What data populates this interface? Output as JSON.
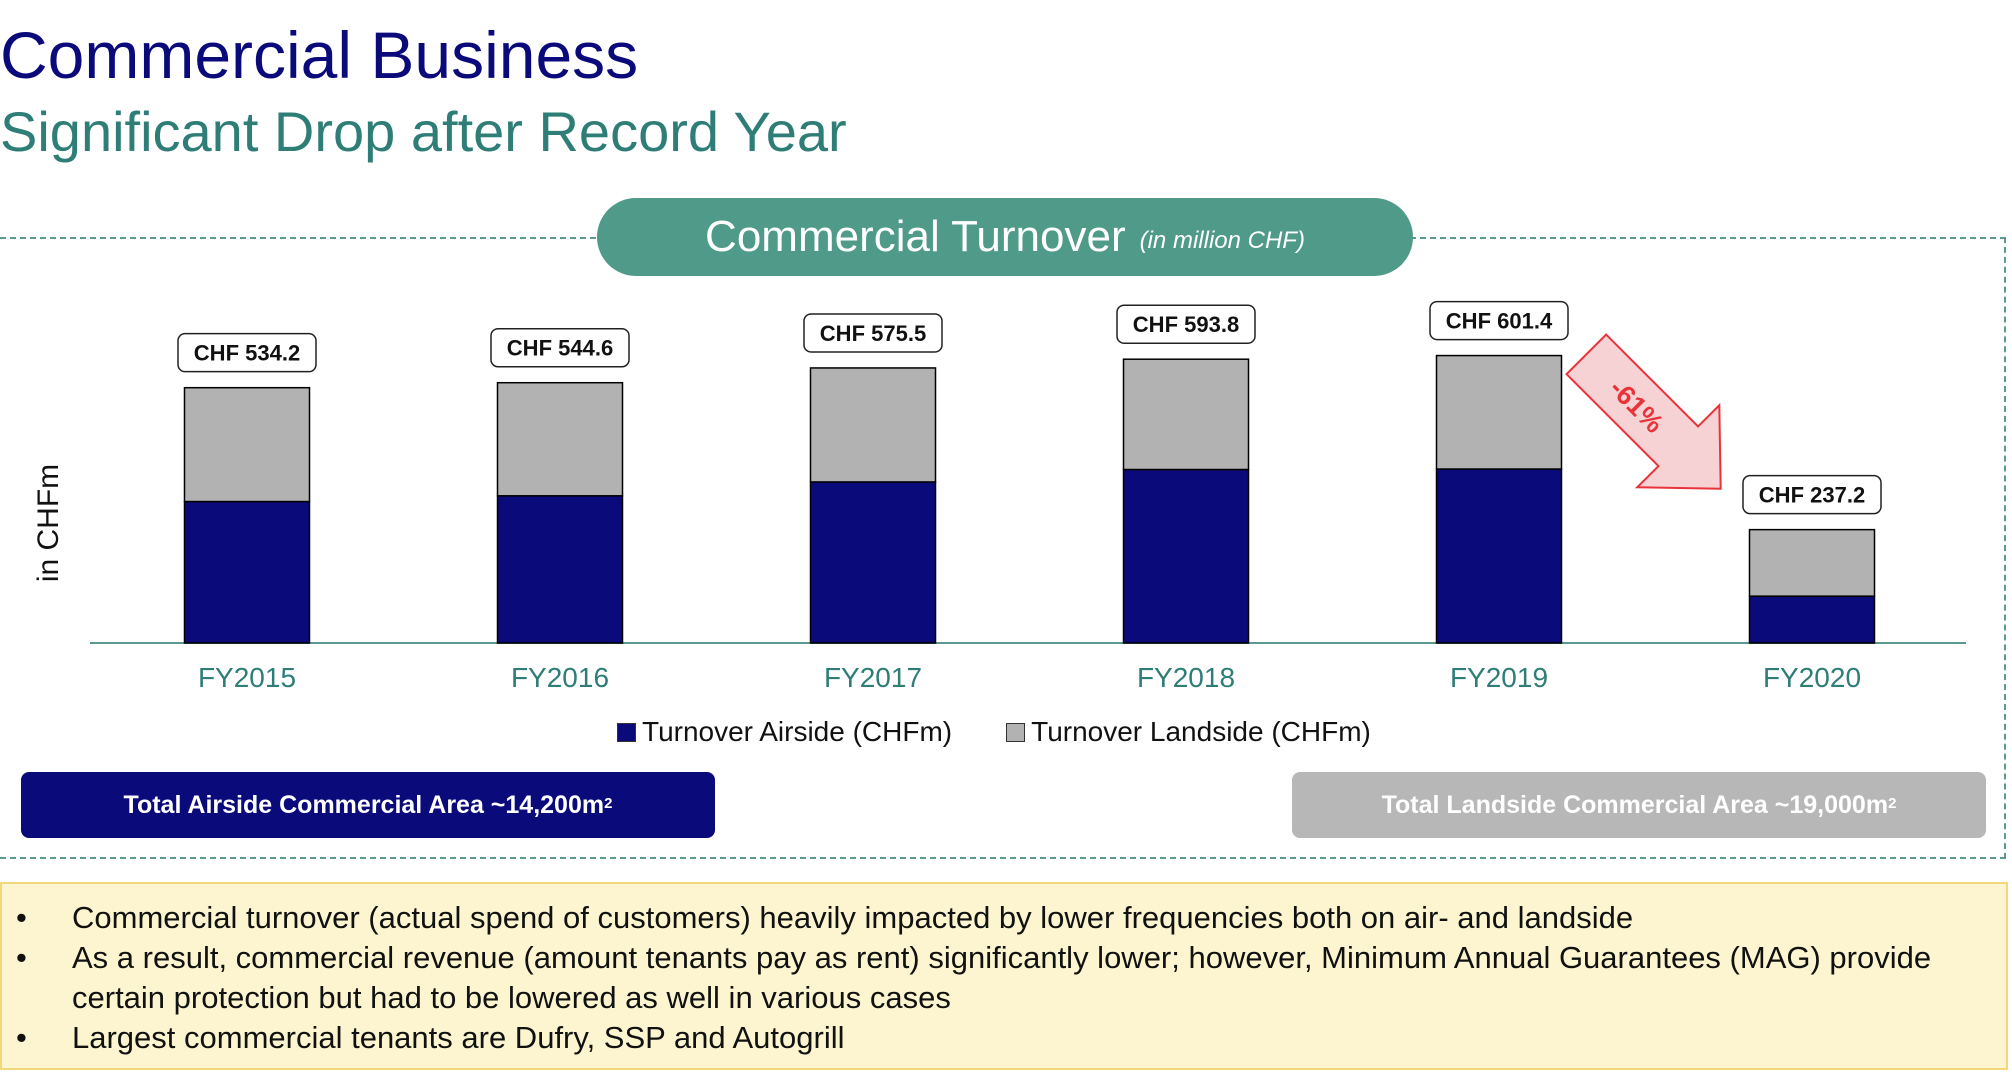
{
  "header": {
    "title": "Commercial Business",
    "subtitle": "Significant Drop after Record Year"
  },
  "panel": {
    "title": "Commercial Turnover",
    "unit": "(in million CHF)"
  },
  "chart_data": {
    "type": "bar",
    "stacked": true,
    "ylabel": "in CHFm",
    "categories": [
      "FY2015",
      "FY2016",
      "FY2017",
      "FY2018",
      "FY2019",
      "FY2020"
    ],
    "series": [
      {
        "name": "Turnover Airside (CHFm)",
        "color": "#0a0a7a",
        "values": [
          296,
          308,
          337,
          363,
          364,
          98
        ]
      },
      {
        "name": "Turnover Landside (CHFm)",
        "color": "#b2b2b2",
        "values": [
          238.2,
          236.6,
          238.5,
          230.8,
          237.4,
          139.2
        ]
      }
    ],
    "totals": [
      534.2,
      544.6,
      575.5,
      593.8,
      601.4,
      237.2
    ],
    "total_labels": [
      "CHF 534.2",
      "CHF 544.6",
      "CHF 575.5",
      "CHF 593.8",
      "CHF 601.4",
      "CHF 237.2"
    ],
    "ylim": [
      0,
      680
    ],
    "legend_position": "bottom",
    "annotation": {
      "text": "-61%",
      "color": "#e8333a"
    }
  },
  "areas": {
    "airside": {
      "text": "Total Airside Commercial Area ~14,200m",
      "sup": "2",
      "color": "#0a0a7a"
    },
    "landside": {
      "text": "Total Landside Commercial Area ~19,000m",
      "sup": "2",
      "color": "#b7b7b7"
    }
  },
  "notes": {
    "bullet": "•",
    "items": [
      "Commercial turnover (actual spend of customers) heavily impacted by lower frequencies both on air- and landside",
      "As a result, commercial revenue (amount tenants pay as rent) significantly lower; however, Minimum Annual Guarantees (MAG) provide certain protection but had to be lowered as well in various cases",
      "Largest commercial tenants are Dufry, SSP and Autogrill"
    ]
  }
}
